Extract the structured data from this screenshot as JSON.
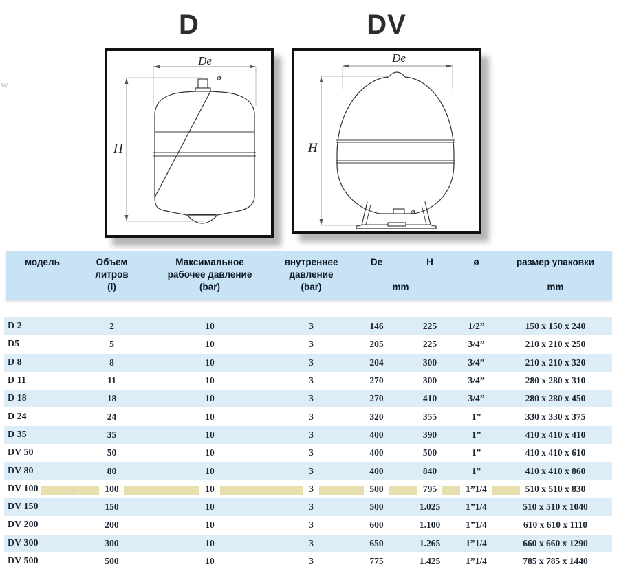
{
  "watermark": "w",
  "diagrams": {
    "left": {
      "title": "D",
      "label_de": "De",
      "label_h": "H",
      "label_diameter": "ø"
    },
    "right": {
      "title": "DV",
      "label_de": "De",
      "label_h": "H",
      "label_diameter": "ø"
    }
  },
  "table": {
    "column_keys": [
      "model",
      "volume_l",
      "max_working_pressure_bar",
      "internal_pressure_bar",
      "de_mm",
      "h_mm",
      "connection_diameter",
      "package_size_mm"
    ],
    "header": {
      "model": "модель",
      "volume_line1": "Объем",
      "volume_line2": "литров",
      "volume_line3": "(l)",
      "max_pressure_line1": "Максимальное",
      "max_pressure_line2": "рабочее давление",
      "max_pressure_line3": "(bar)",
      "internal_pressure_line1": "внутреннее",
      "internal_pressure_line2": "давление",
      "internal_pressure_line3": "(bar)",
      "de": "De",
      "h": "H",
      "diameter": "ø",
      "package": "размер упаковки",
      "unit_de_h": "mm",
      "unit_package": "mm"
    },
    "rows": [
      {
        "cells": [
          "D 2",
          "2",
          "10",
          "3",
          "146",
          "225",
          "1/2”",
          "150 x 150 x 240"
        ],
        "highlight": false
      },
      {
        "cells": [
          "D5",
          "5",
          "10",
          "3",
          "205",
          "225",
          "3/4”",
          "210 x 210 x 250"
        ],
        "highlight": false
      },
      {
        "cells": [
          "D 8",
          "8",
          "10",
          "3",
          "204",
          "300",
          "3/4”",
          "210 x 210 x 320"
        ],
        "highlight": false
      },
      {
        "cells": [
          "D 11",
          "11",
          "10",
          "3",
          "270",
          "300",
          "3/4”",
          "280 x 280 x 310"
        ],
        "highlight": false
      },
      {
        "cells": [
          "D 18",
          "18",
          "10",
          "3",
          "270",
          "410",
          "3/4”",
          "280 x 280 x 450"
        ],
        "highlight": false
      },
      {
        "cells": [
          "D 24",
          "24",
          "10",
          "3",
          "320",
          "355",
          "1”",
          "330 x 330 x 375"
        ],
        "highlight": false
      },
      {
        "cells": [
          "D 35",
          "35",
          "10",
          "3",
          "400",
          "390",
          "1”",
          "410 x 410 x 410"
        ],
        "highlight": false
      },
      {
        "cells": [
          "DV 50",
          "50",
          "10",
          "3",
          "400",
          "500",
          "1”",
          "410 x 410 x 610"
        ],
        "highlight": false
      },
      {
        "cells": [
          "DV 80",
          "80",
          "10",
          "3",
          "400",
          "840",
          "1”",
          "410 x 410 x 860"
        ],
        "highlight": false
      },
      {
        "cells": [
          "DV 100",
          "100",
          "10",
          "3",
          "500",
          "795",
          "1”1/4",
          "510 x 510 x 830"
        ],
        "highlight": true
      },
      {
        "cells": [
          "DV 150",
          "150",
          "10",
          "3",
          "500",
          "1.025",
          "1”1/4",
          "510 x 510 x 1040"
        ],
        "highlight": false
      },
      {
        "cells": [
          "DV 200",
          "200",
          "10",
          "3",
          "600",
          "1.100",
          "1”1/4",
          "610 x 610 x 1110"
        ],
        "highlight": false
      },
      {
        "cells": [
          "DV 300",
          "300",
          "10",
          "3",
          "650",
          "1.265",
          "1”1/4",
          "660 x 660 x 1290"
        ],
        "highlight": false
      },
      {
        "cells": [
          "DV 500",
          "500",
          "10",
          "3",
          "775",
          "1.425",
          "1”1/4",
          "785 x 785 x 1440"
        ],
        "highlight": false
      }
    ]
  },
  "colors": {
    "header_bg": "#c7e3f5",
    "row_alt_bg": "#ddedf8",
    "row_bg": "#ffffff",
    "highlight_bg": "#e8deae",
    "text": "#1c2430",
    "title": "#2d2d2d"
  }
}
